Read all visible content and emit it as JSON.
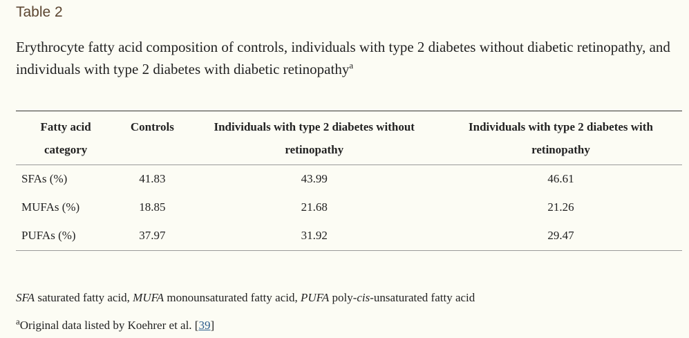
{
  "table_label": "Table 2",
  "caption": {
    "text": "Erythrocyte fatty acid composition of controls, individuals with type 2 diabetes without diabetic retinopathy, and individuals with type 2 diabetes with diabetic retinopathy",
    "superscript": "a"
  },
  "table": {
    "headers": [
      "Fatty acid category",
      "Controls",
      "Individuals with type 2 diabetes without retinopathy",
      "Individuals with type 2 diabetes with retinopathy"
    ],
    "rows": [
      [
        "SFAs (%)",
        "41.83",
        "43.99",
        "46.61"
      ],
      [
        "MUFAs (%)",
        "18.85",
        "21.68",
        "21.26"
      ],
      [
        "PUFAs (%)",
        "37.97",
        "31.92",
        "29.47"
      ]
    ]
  },
  "footnotes": {
    "abbreviations": [
      {
        "abbr": "SFA",
        "def": " saturated fatty acid, "
      },
      {
        "abbr": "MUFA",
        "def": " monounsaturated fatty acid, "
      },
      {
        "abbr": "PUFA",
        "def": " poly-"
      },
      {
        "abbr": "cis",
        "def": "-unsaturated fatty acid"
      }
    ],
    "source": {
      "marker": "a",
      "text": "Original data listed by Koehrer et al. [",
      "ref": "39",
      "close": "]"
    }
  }
}
